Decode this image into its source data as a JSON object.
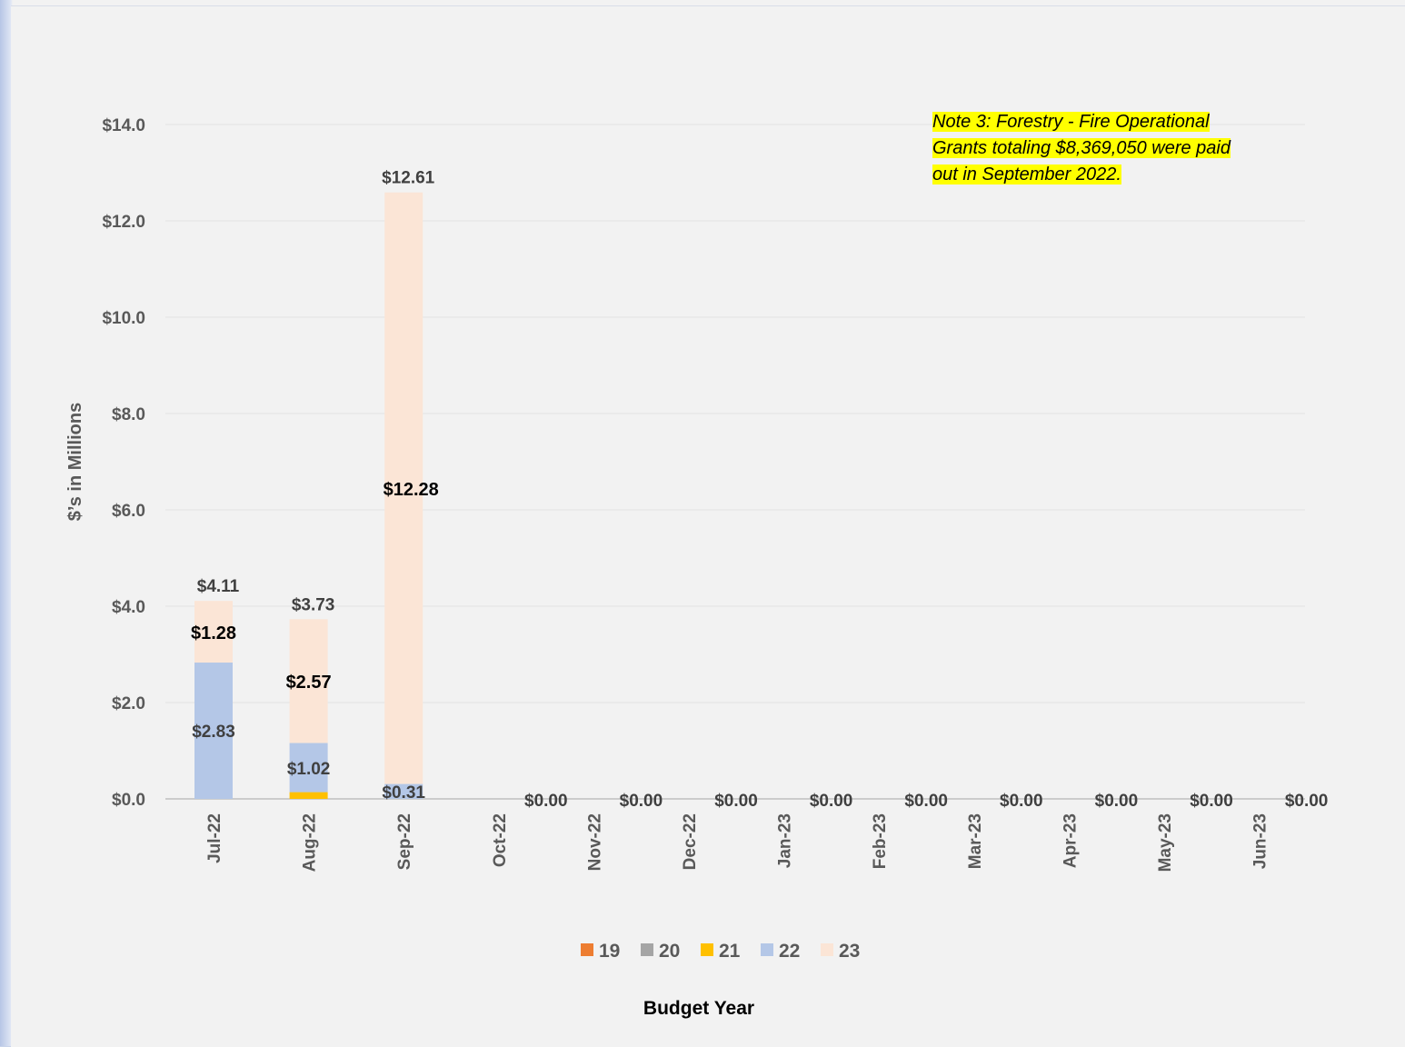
{
  "chart_data": {
    "type": "bar",
    "stacked": true,
    "title": "",
    "xlabel": "Budget Year",
    "ylabel": "$’s in  Millions",
    "ylim": [
      0,
      14
    ],
    "yticks": [
      "$0.0",
      "$2.0",
      "$4.0",
      "$6.0",
      "$8.0",
      "$10.0",
      "$12.0",
      "$14.0"
    ],
    "categories": [
      "Jul-22",
      "Aug-22",
      "Sep-22",
      "Oct-22",
      "Nov-22",
      "Dec-22",
      "Jan-23",
      "Feb-23",
      "Mar-23",
      "Apr-23",
      "May-23",
      "Jun-23"
    ],
    "series": [
      {
        "name": "19",
        "color": "#ed7d31",
        "values": [
          0,
          0,
          0,
          0,
          0,
          0,
          0,
          0,
          0,
          0,
          0,
          0
        ]
      },
      {
        "name": "20",
        "color": "#a5a5a5",
        "values": [
          0,
          0,
          0,
          0,
          0,
          0,
          0,
          0,
          0,
          0,
          0,
          0
        ]
      },
      {
        "name": "21",
        "color": "#ffc000",
        "values": [
          0,
          0.14,
          0,
          0,
          0,
          0,
          0,
          0,
          0,
          0,
          0,
          0
        ]
      },
      {
        "name": "22",
        "color": "#b4c7e7",
        "values": [
          2.83,
          1.02,
          0.31,
          0,
          0,
          0,
          0,
          0,
          0,
          0,
          0,
          0
        ]
      },
      {
        "name": "23",
        "color": "#fbe5d6",
        "values": [
          1.28,
          2.57,
          12.28,
          0,
          0,
          0,
          0,
          0,
          0,
          0,
          0,
          0
        ]
      }
    ],
    "segment_labels": [
      {
        "category": "Jul-22",
        "series": "22",
        "label": "$2.83"
      },
      {
        "category": "Jul-22",
        "series": "23",
        "label": "$1.28"
      },
      {
        "category": "Aug-22",
        "series": "22",
        "label": "$1.02"
      },
      {
        "category": "Aug-22",
        "series": "23",
        "label": "$2.57"
      },
      {
        "category": "Sep-22",
        "series": "22",
        "label": "$0.31"
      },
      {
        "category": "Sep-22",
        "series": "23",
        "label": "$12.28"
      }
    ],
    "total_labels": [
      "$4.11",
      "$3.73",
      "$12.61",
      "$0.00",
      "$0.00",
      "$0.00",
      "$0.00",
      "$0.00",
      "$0.00",
      "$0.00",
      "$0.00",
      "$0.00"
    ],
    "legend": {
      "position": "bottom",
      "entries": [
        "19",
        "20",
        "21",
        "22",
        "23"
      ]
    },
    "grid": true,
    "annotation": {
      "lines": [
        "Note 3: Forestry  - Fire Operational",
        "Grants totaling $8,369,050 were paid",
        "out in September 2022."
      ],
      "highlight": "#ffff00"
    }
  }
}
